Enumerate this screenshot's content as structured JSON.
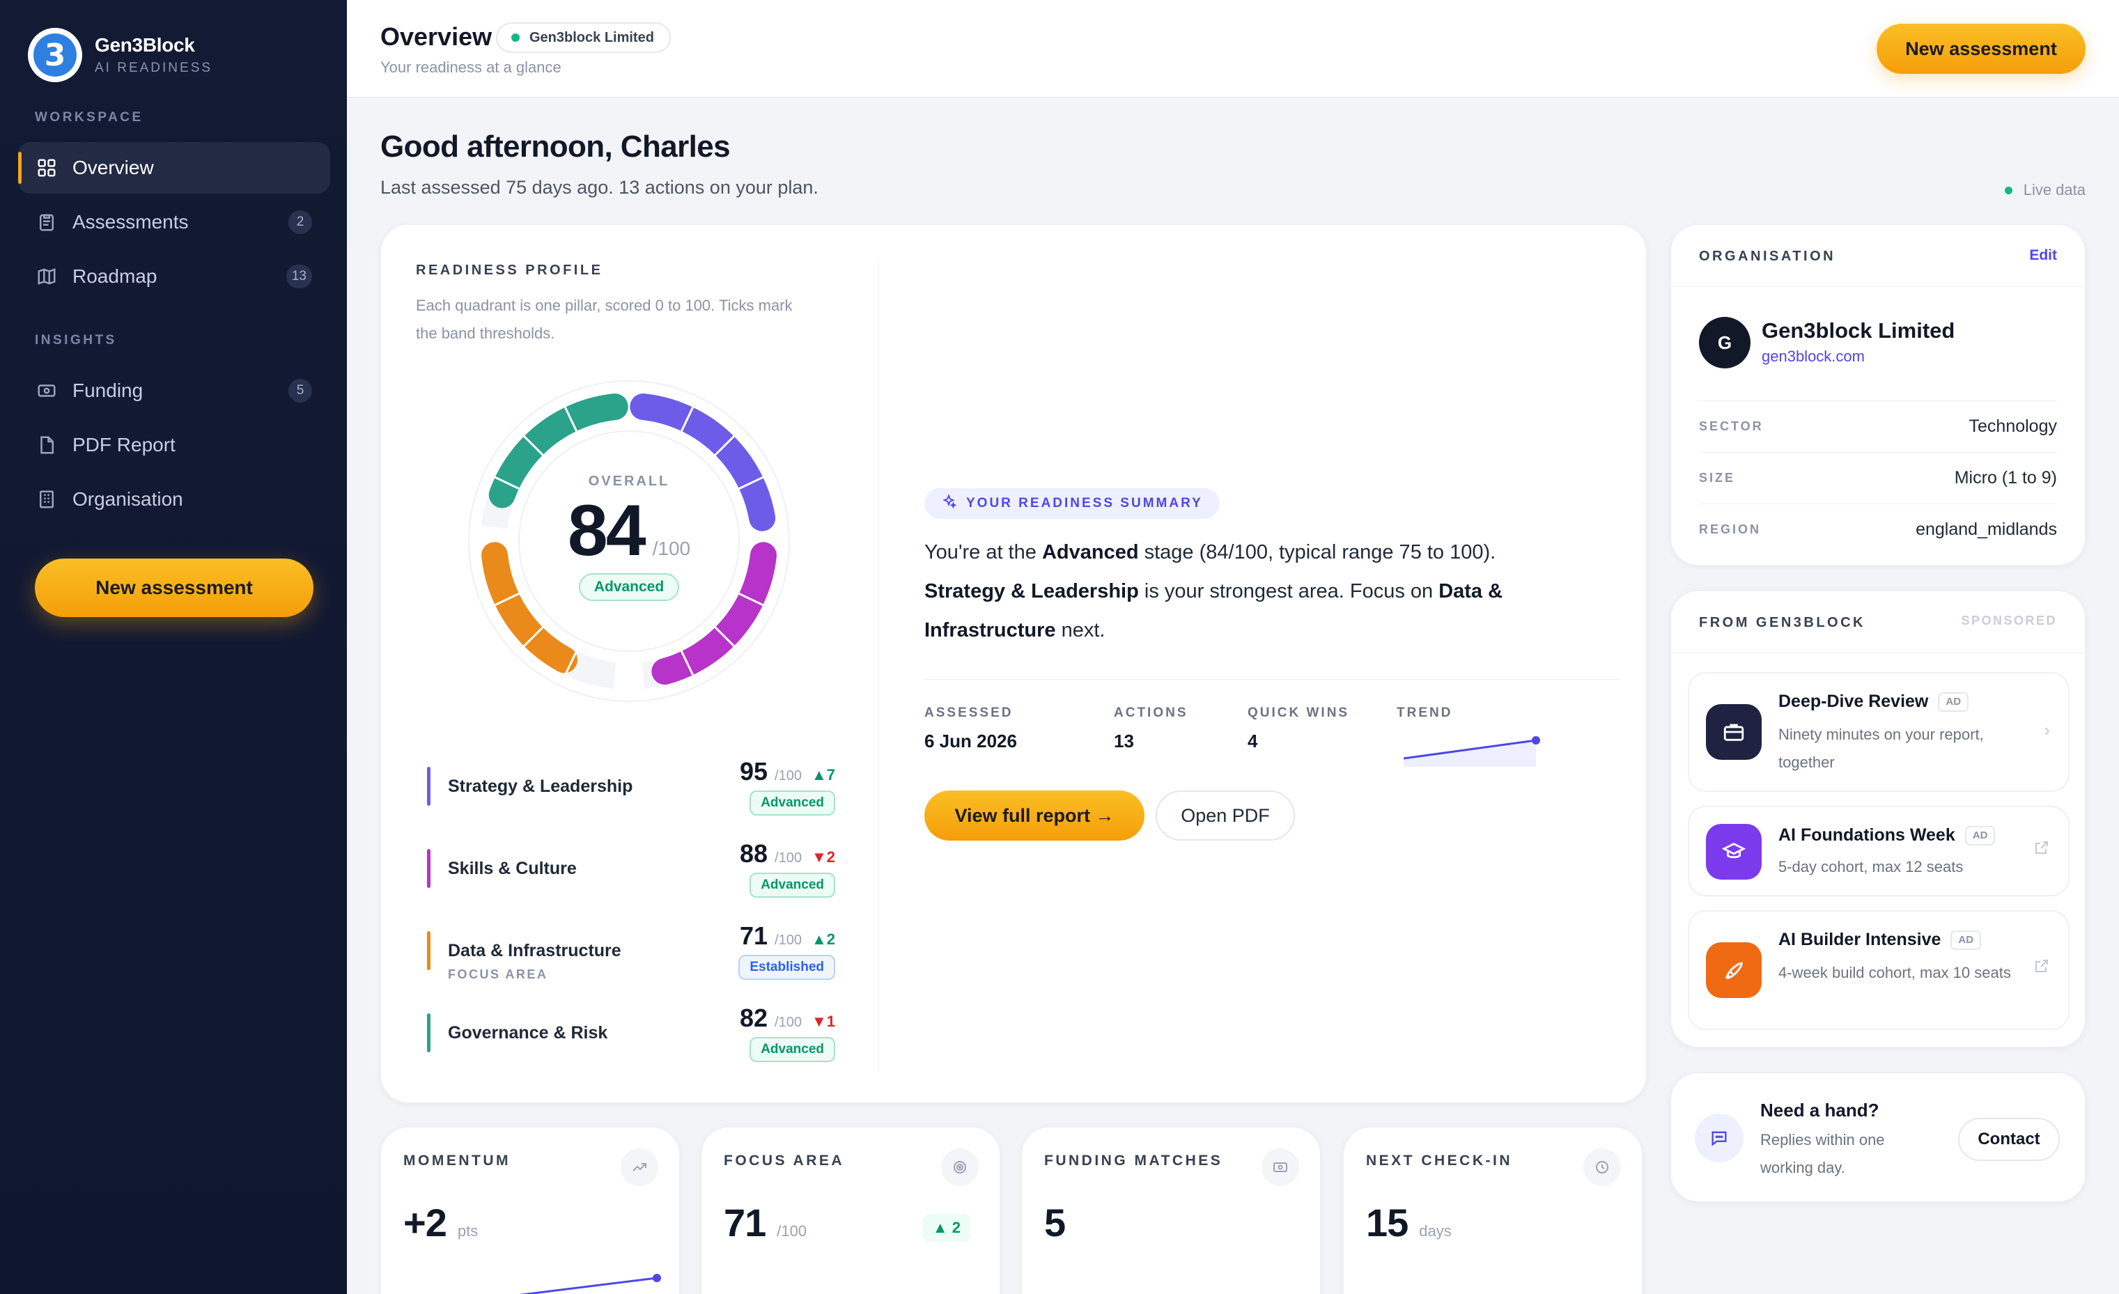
{
  "brand": {
    "name": "Gen3Block",
    "subtitle": "AI READINESS",
    "logo_text": "3"
  },
  "sidebar": {
    "section_workspace": "WORKSPACE",
    "section_insights": "INSIGHTS",
    "items": [
      {
        "label": "Overview",
        "icon": "grid-icon",
        "count": ""
      },
      {
        "label": "Assessments",
        "icon": "clipboard-icon",
        "count": "2"
      },
      {
        "label": "Roadmap",
        "icon": "map-icon",
        "count": "13"
      },
      {
        "label": "Funding",
        "icon": "banknote-icon",
        "count": "5"
      },
      {
        "label": "PDF Report",
        "icon": "file-icon",
        "count": ""
      },
      {
        "label": "Organisation",
        "icon": "building-icon",
        "count": ""
      }
    ],
    "cta": "New assessment"
  },
  "topbar": {
    "title": "Overview",
    "org_chip": "Gen3block Limited",
    "subtitle": "Your readiness at a glance",
    "cta": "New assessment"
  },
  "greeting": {
    "title": "Good afternoon, Charles",
    "subtitle": "Last assessed 75 days ago. 13 actions on your plan.",
    "live": "Live data"
  },
  "profile": {
    "title": "READINESS PROFILE",
    "desc": "Each quadrant is one pillar, scored 0 to 100. Ticks mark the band thresholds.",
    "overall_label": "OVERALL",
    "overall": "84",
    "overall_of": "/100",
    "overall_band": "Advanced",
    "pillars": [
      {
        "name": "Strategy & Leadership",
        "score": "95",
        "of": "/100",
        "delta": "▲7",
        "dir": "up",
        "band": "Advanced",
        "band_type": "adv",
        "focus": "",
        "color": "#6d5ce8"
      },
      {
        "name": "Skills & Culture",
        "score": "88",
        "of": "/100",
        "delta": "▼2",
        "dir": "down",
        "band": "Advanced",
        "band_type": "adv",
        "focus": "",
        "color": "#b833c9"
      },
      {
        "name": "Data & Infrastructure",
        "score": "71",
        "of": "/100",
        "delta": "▲2",
        "dir": "up",
        "band": "Established",
        "band_type": "est",
        "focus": "FOCUS AREA",
        "color": "#e98a1b"
      },
      {
        "name": "Governance & Risk",
        "score": "82",
        "of": "/100",
        "delta": "▼1",
        "dir": "down",
        "band": "Advanced",
        "band_type": "adv",
        "focus": "",
        "color": "#2aa38a"
      }
    ]
  },
  "summary": {
    "chip": "YOUR READINESS SUMMARY",
    "p1": "You're at the ",
    "b1": "Advanced",
    "p2": " stage (84/100, typical range 75 to 100). ",
    "b2": "Strategy & Leadership",
    "p3": " is your strongest area. Focus on ",
    "b3": "Data & Infrastructure",
    "p4": " next.",
    "stats": [
      {
        "k": "ASSESSED",
        "v": "6 Jun 2026"
      },
      {
        "k": "ACTIONS",
        "v": "13"
      },
      {
        "k": "QUICK WINS",
        "v": "4"
      },
      {
        "k": "TREND",
        "v": ""
      }
    ],
    "btn_primary": "View full report →",
    "btn_secondary": "Open PDF"
  },
  "organisation": {
    "title": "ORGANISATION",
    "edit": "Edit",
    "avatar": "G",
    "name": "Gen3block Limited",
    "domain": "gen3block.com",
    "rows": [
      {
        "k": "SECTOR",
        "v": "Technology"
      },
      {
        "k": "SIZE",
        "v": "Micro (1 to 9)"
      },
      {
        "k": "REGION",
        "v": "england_midlands"
      }
    ]
  },
  "from": {
    "title": "FROM GEN3BLOCK",
    "sponsored": "SPONSORED",
    "ad_label": "AD",
    "promos": [
      {
        "title": "Deep-Dive Review",
        "desc": "Ninety minutes on your report, together",
        "icon": "briefcase-icon",
        "bg": "#1f2341"
      },
      {
        "title": "AI Foundations Week",
        "desc": "5-day cohort, max 12 seats",
        "icon": "graduation-cap-icon",
        "bg": "#7c3aed"
      },
      {
        "title": "AI Builder Intensive",
        "desc": "4-week build cohort, max 10 seats",
        "icon": "rocket-icon",
        "bg": "#f06a13"
      }
    ]
  },
  "help": {
    "title": "Need a hand?",
    "desc": "Replies within one working day.",
    "btn": "Contact"
  },
  "tiles": [
    {
      "k": "MOMENTUM",
      "n": "+2",
      "u": "pts",
      "pill": ""
    },
    {
      "k": "FOCUS AREA",
      "n": "71",
      "u": "/100",
      "pill": "▲ 2"
    },
    {
      "k": "FUNDING MATCHES",
      "n": "5",
      "u": "",
      "pill": ""
    },
    {
      "k": "NEXT CHECK-IN",
      "n": "15",
      "u": "days",
      "pill": ""
    }
  ],
  "colors": {
    "accent": "#f59e0b",
    "brand": "#4f46e5",
    "success": "#059669",
    "danger": "#dc2626"
  }
}
